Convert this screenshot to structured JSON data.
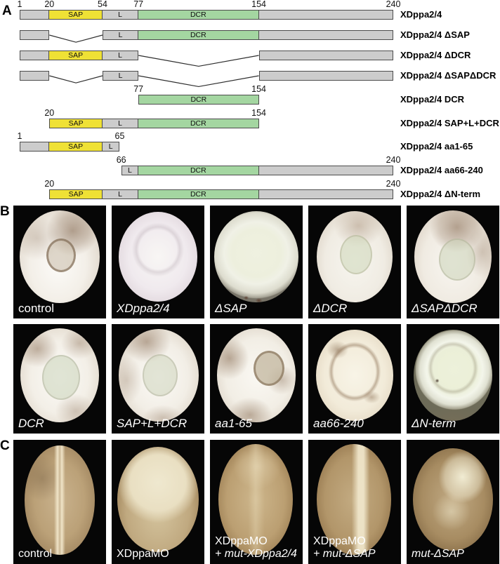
{
  "panelA": {
    "letter": "A",
    "colors": {
      "segment_gray": "#cccccc",
      "segment_sap_yellow": "#efe135",
      "segment_dcr_green": "#a4d6a1",
      "segment_border": "#4c4c4c"
    },
    "constructs": [
      {
        "label": "XDppa2/4",
        "ticks": [
          {
            "aa": 1,
            "text": "1"
          },
          {
            "aa": 20,
            "text": "20"
          },
          {
            "aa": 54,
            "text": "54"
          },
          {
            "aa": 77,
            "text": "77"
          },
          {
            "aa": 154,
            "text": "154"
          },
          {
            "aa": 240,
            "text": "240"
          }
        ],
        "segments": [
          {
            "from": 1,
            "to": 20,
            "kind": "gray",
            "text": ""
          },
          {
            "from": 20,
            "to": 54,
            "kind": "sap",
            "text": "SAP"
          },
          {
            "from": 54,
            "to": 77,
            "kind": "gray",
            "text": "L"
          },
          {
            "from": 77,
            "to": 154,
            "kind": "dcr",
            "text": "DCR"
          },
          {
            "from": 154,
            "to": 240,
            "kind": "gray",
            "text": ""
          }
        ],
        "deletions": []
      },
      {
        "label": "XDppa2/4 ΔSAP",
        "ticks": [],
        "segments": [
          {
            "from": 1,
            "to": 20,
            "kind": "gray",
            "text": ""
          },
          {
            "from": 54,
            "to": 77,
            "kind": "gray",
            "text": "L"
          },
          {
            "from": 77,
            "to": 154,
            "kind": "dcr",
            "text": "DCR"
          },
          {
            "from": 154,
            "to": 240,
            "kind": "gray",
            "text": ""
          }
        ],
        "deletions": [
          {
            "from": 20,
            "to": 54
          }
        ]
      },
      {
        "label": "XDppa2/4 ΔDCR",
        "ticks": [],
        "segments": [
          {
            "from": 1,
            "to": 20,
            "kind": "gray",
            "text": ""
          },
          {
            "from": 20,
            "to": 54,
            "kind": "sap",
            "text": "SAP"
          },
          {
            "from": 54,
            "to": 77,
            "kind": "gray",
            "text": "L"
          },
          {
            "from": 154,
            "to": 240,
            "kind": "gray",
            "text": ""
          }
        ],
        "deletions": [
          {
            "from": 77,
            "to": 154
          }
        ]
      },
      {
        "label": "XDppa2/4 ΔSAPΔDCR",
        "ticks": [],
        "segments": [
          {
            "from": 1,
            "to": 20,
            "kind": "gray",
            "text": ""
          },
          {
            "from": 54,
            "to": 77,
            "kind": "gray",
            "text": "L"
          },
          {
            "from": 154,
            "to": 240,
            "kind": "gray",
            "text": ""
          }
        ],
        "deletions": [
          {
            "from": 20,
            "to": 54
          },
          {
            "from": 77,
            "to": 154
          }
        ]
      },
      {
        "label": "XDppa2/4 DCR",
        "ticks": [
          {
            "aa": 77,
            "text": "77"
          },
          {
            "aa": 154,
            "text": "154"
          }
        ],
        "segments": [
          {
            "from": 77,
            "to": 154,
            "kind": "dcr",
            "text": "DCR"
          }
        ],
        "deletions": []
      },
      {
        "label": "XDppa2/4 SAP+L+DCR",
        "ticks": [
          {
            "aa": 20,
            "text": "20"
          },
          {
            "aa": 154,
            "text": "154"
          }
        ],
        "segments": [
          {
            "from": 20,
            "to": 54,
            "kind": "sap",
            "text": "SAP"
          },
          {
            "from": 54,
            "to": 77,
            "kind": "gray",
            "text": "L"
          },
          {
            "from": 77,
            "to": 154,
            "kind": "dcr",
            "text": "DCR"
          }
        ],
        "deletions": []
      },
      {
        "label": "XDppa2/4 aa1-65",
        "ticks": [
          {
            "aa": 1,
            "text": "1"
          },
          {
            "aa": 65,
            "text": "65"
          }
        ],
        "segments": [
          {
            "from": 1,
            "to": 20,
            "kind": "gray",
            "text": ""
          },
          {
            "from": 20,
            "to": 54,
            "kind": "sap",
            "text": "SAP"
          },
          {
            "from": 54,
            "to": 65,
            "kind": "gray",
            "text": "L"
          }
        ],
        "deletions": []
      },
      {
        "label": "XDppa2/4 aa66-240",
        "ticks": [
          {
            "aa": 66,
            "text": "66"
          },
          {
            "aa": 240,
            "text": "240"
          }
        ],
        "segments": [
          {
            "from": 66,
            "to": 77,
            "kind": "gray",
            "text": "L"
          },
          {
            "from": 77,
            "to": 154,
            "kind": "dcr",
            "text": "DCR"
          },
          {
            "from": 154,
            "to": 240,
            "kind": "gray",
            "text": ""
          }
        ],
        "deletions": []
      },
      {
        "label": "XDppa2/4 ΔN-term",
        "ticks": [
          {
            "aa": 20,
            "text": "20"
          },
          {
            "aa": 240,
            "text": "240"
          }
        ],
        "segments": [
          {
            "from": 20,
            "to": 54,
            "kind": "sap",
            "text": "SAP"
          },
          {
            "from": 54,
            "to": 77,
            "kind": "gray",
            "text": "L"
          },
          {
            "from": 77,
            "to": 154,
            "kind": "dcr",
            "text": "DCR"
          },
          {
            "from": 154,
            "to": 240,
            "kind": "gray",
            "text": ""
          }
        ],
        "deletions": []
      }
    ]
  },
  "panelB": {
    "letter": "B",
    "rows": [
      [
        {
          "label": "control",
          "italic": false,
          "style": "b-control"
        },
        {
          "label": "XDppa2/4",
          "italic": true,
          "style": "b-xdppa"
        },
        {
          "label": "ΔSAP",
          "italic": true,
          "style": "b-dsap"
        },
        {
          "label": "ΔDCR",
          "italic": true,
          "style": "b-ddcr"
        },
        {
          "label": "ΔSAPΔDCR",
          "italic": true,
          "style": "b-dsapddcr"
        }
      ],
      [
        {
          "label": "DCR",
          "italic": true,
          "style": "b-dcr"
        },
        {
          "label": "SAP+L+DCR",
          "italic": true,
          "style": "b-sapldcr"
        },
        {
          "label": "aa1-65",
          "italic": true,
          "style": "b-aa165"
        },
        {
          "label": "aa66-240",
          "italic": true,
          "style": "b-aa66240"
        },
        {
          "label": "ΔN-term",
          "italic": true,
          "style": "b-dnterm"
        }
      ]
    ]
  },
  "panelC": {
    "letter": "C",
    "cells": [
      {
        "lines": [
          {
            "text": "control",
            "italic": false
          }
        ],
        "style": "c-control"
      },
      {
        "lines": [
          {
            "text": "XDppaMO",
            "italic": false
          }
        ],
        "style": "c-xdppamo"
      },
      {
        "lines": [
          {
            "text": "XDppaMO",
            "italic": false
          },
          {
            "text": "+ mut-XDppa2/4",
            "italic": true
          }
        ],
        "style": "c-momutx"
      },
      {
        "lines": [
          {
            "text": "XDppaMO",
            "italic": false
          },
          {
            "text": "+ mut-ΔSAP",
            "italic": true
          }
        ],
        "style": "c-momutdsap"
      },
      {
        "lines": [
          {
            "text": "mut-ΔSAP",
            "italic": true
          }
        ],
        "style": "c-mutdsap"
      }
    ]
  }
}
